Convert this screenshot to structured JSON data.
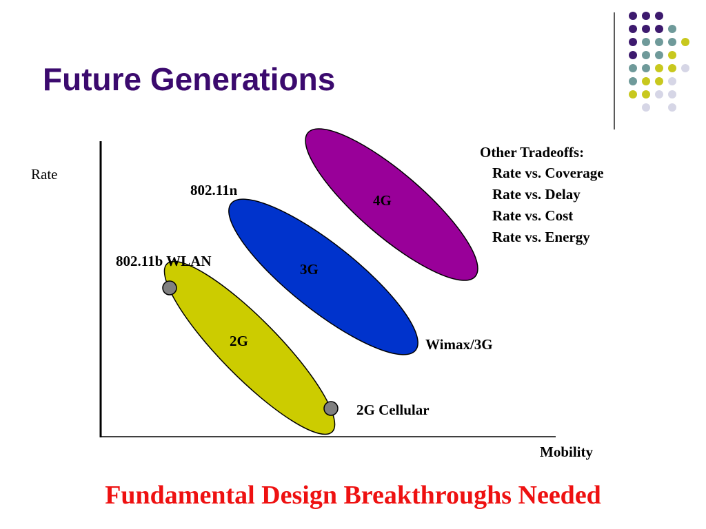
{
  "slide": {
    "title": "Future Generations",
    "footer": "Fundamental Design Breakthroughs Needed"
  },
  "diagram": {
    "y_axis_label": "Rate",
    "x_axis_label": "Mobility",
    "regions": [
      {
        "label": "2G",
        "color": "#cccc00"
      },
      {
        "label": "3G",
        "color": "#0033cc"
      },
      {
        "label": "4G",
        "color": "#990099"
      }
    ],
    "annotations": {
      "wlan_80211b": "802.11b WLAN",
      "wlan_80211n": "802.11n",
      "cellular_2g": "2G Cellular",
      "wimax_3g": "Wimax/3G"
    },
    "marker_color": "#808080",
    "tradeoffs": {
      "heading": "Other Tradeoffs:",
      "items": [
        "Rate vs. Coverage",
        "Rate vs. Delay",
        "Rate vs. Cost",
        "Rate vs. Energy"
      ]
    }
  },
  "decoration": {
    "dot_colors": [
      "#3d1a6e",
      "#6f9a9a",
      "#c8c81e",
      "#d6d6e6"
    ]
  }
}
